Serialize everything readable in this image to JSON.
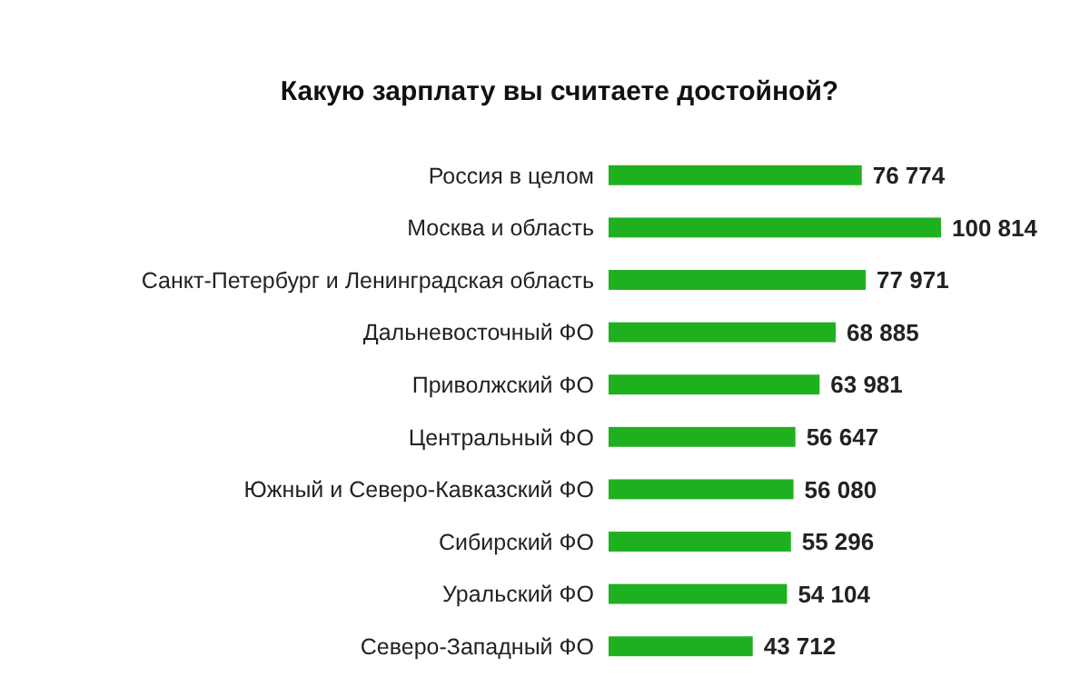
{
  "chart_data": {
    "type": "bar",
    "orientation": "horizontal",
    "title": "Какую зарплату вы считаете достойной?",
    "categories": [
      "Россия в целом",
      "Москва и область",
      "Санкт-Петербург и Ленинградская область",
      "Дальневосточный ФО",
      "Приволжский ФО",
      "Центральный ФО",
      "Южный и Северо-Кавказский ФО",
      "Сибирский ФО",
      "Уральский ФО",
      "Северо-Западный ФО"
    ],
    "values": [
      76774,
      100814,
      77971,
      68885,
      63981,
      56647,
      56080,
      55296,
      54104,
      43712
    ],
    "value_labels": [
      "76 774",
      "100 814",
      "77 971",
      "68 885",
      "63 981",
      "56 647",
      "56 080",
      "55 296",
      "54 104",
      "43 712"
    ],
    "color": "#1fb01f"
  }
}
